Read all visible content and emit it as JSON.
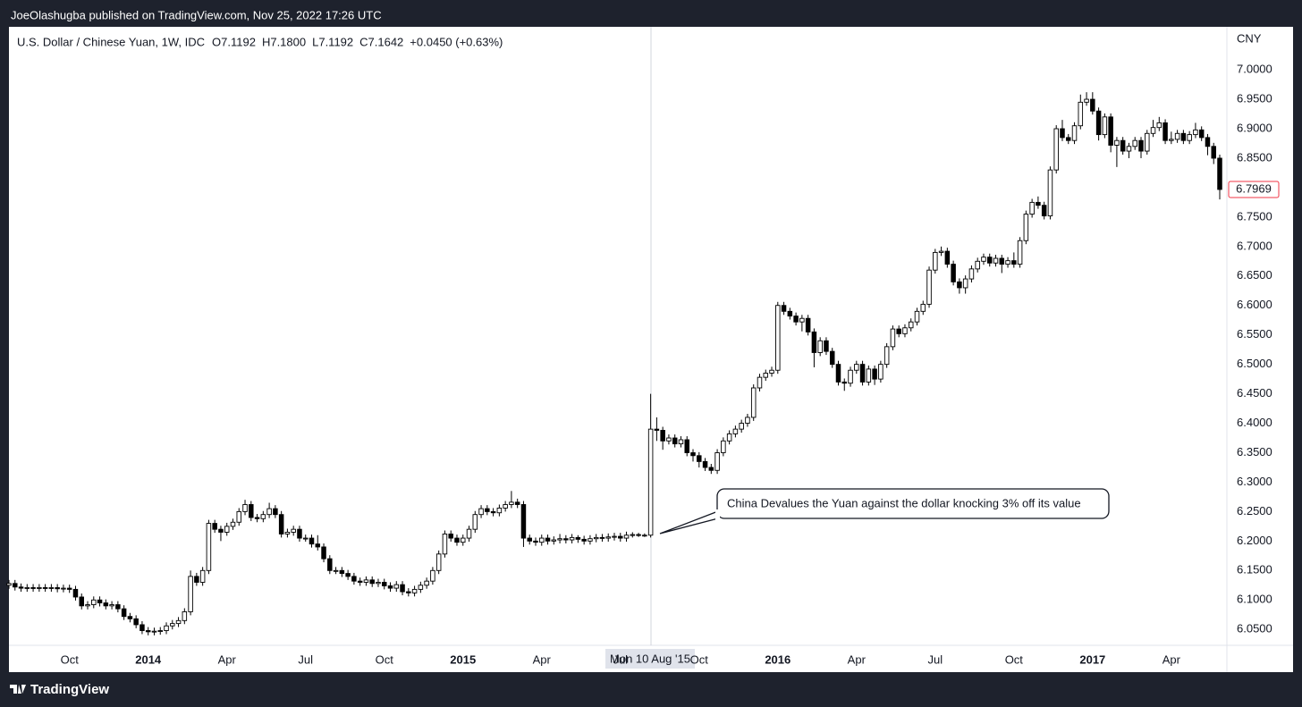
{
  "header": {
    "published": "JoeOlashugba published on TradingView.com, Nov 25, 2022 17:26 UTC"
  },
  "footer": {
    "brand": "TradingView"
  },
  "chart_data": {
    "type": "candlestick",
    "title": "U.S. Dollar / Chinese Yuan, 1W, IDC",
    "ohlc_header": [
      "O7.1192",
      "H7.1800",
      "L7.1192",
      "C7.1642",
      "+0.0450 (+0.63%)"
    ],
    "y_axis_label": "CNY",
    "crosshair_label": "Mon 10 Aug '15",
    "annotation": "China Devalues the Yuan against the dollar knocking 3% off its value",
    "up_color": "#ffffff",
    "down_color": "#000000",
    "outline_color": "#000000",
    "grid": false,
    "ylim": [
      6.023,
      7.073
    ],
    "yticks": [
      {
        "value": 6.05,
        "label": "6.0500"
      },
      {
        "value": 6.1,
        "label": "6.1000"
      },
      {
        "value": 6.15,
        "label": "6.1500"
      },
      {
        "value": 6.2,
        "label": "6.2000"
      },
      {
        "value": 6.25,
        "label": "6.2500"
      },
      {
        "value": 6.3,
        "label": "6.3000"
      },
      {
        "value": 6.35,
        "label": "6.3500"
      },
      {
        "value": 6.4,
        "label": "6.4000"
      },
      {
        "value": 6.45,
        "label": "6.4500"
      },
      {
        "value": 6.5,
        "label": "6.5000"
      },
      {
        "value": 6.55,
        "label": "6.5500"
      },
      {
        "value": 6.6,
        "label": "6.6000"
      },
      {
        "value": 6.65,
        "label": "6.6500"
      },
      {
        "value": 6.7,
        "label": "6.7000"
      },
      {
        "value": 6.75,
        "label": "6.7500"
      },
      {
        "value": 6.8,
        "label": "6.8000"
      },
      {
        "value": 6.85,
        "label": "6.8500"
      },
      {
        "value": 6.9,
        "label": "6.9000"
      },
      {
        "value": 6.95,
        "label": "6.9500"
      },
      {
        "value": 7.0,
        "label": "7.0000"
      }
    ],
    "xticks": [
      {
        "value": 10,
        "label": "Oct"
      },
      {
        "value": 23,
        "label": "2014"
      },
      {
        "value": 36,
        "label": "Apr"
      },
      {
        "value": 49,
        "label": "Jul"
      },
      {
        "value": 62,
        "label": "Oct"
      },
      {
        "value": 75,
        "label": "2015"
      },
      {
        "value": 88,
        "label": "Apr"
      },
      {
        "value": 101,
        "label": "Jul"
      },
      {
        "value": 114,
        "label": "Oct"
      },
      {
        "value": 127,
        "label": "2016"
      },
      {
        "value": 140,
        "label": "Apr"
      },
      {
        "value": 153,
        "label": "Jul"
      },
      {
        "value": 166,
        "label": "Oct"
      },
      {
        "value": 179,
        "label": "2017"
      },
      {
        "value": 192,
        "label": "Apr"
      }
    ],
    "open": [
      6.125,
      6.128,
      6.122,
      6.12,
      6.121,
      6.12,
      6.121,
      6.12,
      6.121,
      6.119,
      6.12,
      6.118,
      6.105,
      6.09,
      6.092,
      6.1,
      6.095,
      6.09,
      6.092,
      6.085,
      6.072,
      6.068,
      6.058,
      6.048,
      6.046,
      6.047,
      6.048,
      6.056,
      6.06,
      6.065,
      6.08,
      6.14,
      6.13,
      6.15,
      6.23,
      6.22,
      6.215,
      6.225,
      6.232,
      6.25,
      6.262,
      6.24,
      6.238,
      6.245,
      6.255,
      6.245,
      6.212,
      6.215,
      6.22,
      6.205,
      6.205,
      6.195,
      6.19,
      6.17,
      6.15,
      6.15,
      6.145,
      6.14,
      6.132,
      6.13,
      6.134,
      6.128,
      6.13,
      6.124,
      6.12,
      6.126,
      6.114,
      6.112,
      6.118,
      6.125,
      6.132,
      6.15,
      6.178,
      6.212,
      6.205,
      6.198,
      6.205,
      6.22,
      6.245,
      6.255,
      6.25,
      6.248,
      6.256,
      6.262,
      6.266,
      6.262,
      6.205,
      6.2,
      6.198,
      6.205,
      6.2,
      6.202,
      6.204,
      6.202,
      6.206,
      6.203,
      6.2,
      6.204,
      6.206,
      6.205,
      6.207,
      6.208,
      6.205,
      6.21,
      6.211,
      6.21,
      6.21,
      6.39,
      6.388,
      6.37,
      6.375,
      6.365,
      6.372,
      6.35,
      6.345,
      6.335,
      6.325,
      6.32,
      6.35,
      6.37,
      6.382,
      6.39,
      6.4,
      6.41,
      6.46,
      6.478,
      6.485,
      6.49,
      6.6,
      6.59,
      6.582,
      6.572,
      6.578,
      6.555,
      6.52,
      6.54,
      6.522,
      6.5,
      6.47,
      6.468,
      6.49,
      6.5,
      6.47,
      6.492,
      6.475,
      6.5,
      6.53,
      6.56,
      6.552,
      6.562,
      6.572,
      6.59,
      6.602,
      6.66,
      6.69,
      6.692,
      6.67,
      6.64,
      6.63,
      6.645,
      6.662,
      6.675,
      6.682,
      6.672,
      6.68,
      6.67,
      6.676,
      6.67,
      6.71,
      6.755,
      6.775,
      6.77,
      6.752,
      6.83,
      6.9,
      6.885,
      6.88,
      6.905,
      6.945,
      6.95,
      6.93,
      6.89,
      6.92,
      6.872,
      6.88,
      6.862,
      6.87,
      6.88,
      6.862,
      6.892,
      6.902,
      6.91,
      6.88,
      6.882,
      6.892,
      6.88,
      6.89,
      6.898,
      6.885,
      6.87,
      6.85
    ],
    "high": [
      6.134,
      6.134,
      6.128,
      6.127,
      6.127,
      6.127,
      6.127,
      6.127,
      6.127,
      6.126,
      6.126,
      6.124,
      6.111,
      6.098,
      6.106,
      6.106,
      6.101,
      6.098,
      6.098,
      6.091,
      6.078,
      6.074,
      6.064,
      6.054,
      6.053,
      6.054,
      6.062,
      6.066,
      6.071,
      6.086,
      6.15,
      6.146,
      6.156,
      6.236,
      6.236,
      6.226,
      6.231,
      6.238,
      6.256,
      6.27,
      6.268,
      6.246,
      6.251,
      6.265,
      6.261,
      6.251,
      6.221,
      6.226,
      6.226,
      6.211,
      6.211,
      6.21,
      6.196,
      6.176,
      6.156,
      6.156,
      6.151,
      6.146,
      6.138,
      6.14,
      6.14,
      6.136,
      6.136,
      6.13,
      6.132,
      6.132,
      6.12,
      6.124,
      6.131,
      6.138,
      6.156,
      6.184,
      6.218,
      6.218,
      6.211,
      6.211,
      6.226,
      6.251,
      6.261,
      6.261,
      6.256,
      6.262,
      6.268,
      6.285,
      6.272,
      6.268,
      6.211,
      6.206,
      6.211,
      6.211,
      6.208,
      6.212,
      6.21,
      6.212,
      6.21,
      6.209,
      6.21,
      6.212,
      6.212,
      6.213,
      6.214,
      6.214,
      6.216,
      6.215,
      6.214,
      6.213,
      6.45,
      6.41,
      6.394,
      6.381,
      6.381,
      6.378,
      6.378,
      6.356,
      6.351,
      6.341,
      6.331,
      6.356,
      6.376,
      6.388,
      6.396,
      6.406,
      6.416,
      6.466,
      6.484,
      6.491,
      6.496,
      6.606,
      6.606,
      6.596,
      6.588,
      6.584,
      6.584,
      6.561,
      6.546,
      6.546,
      6.528,
      6.506,
      6.476,
      6.496,
      6.506,
      6.506,
      6.498,
      6.498,
      6.506,
      6.536,
      6.566,
      6.566,
      6.568,
      6.578,
      6.596,
      6.608,
      6.666,
      6.696,
      6.7,
      6.698,
      6.676,
      6.646,
      6.651,
      6.668,
      6.681,
      6.688,
      6.688,
      6.686,
      6.686,
      6.682,
      6.69,
      6.716,
      6.761,
      6.781,
      6.785,
      6.776,
      6.836,
      6.906,
      6.915,
      6.891,
      6.911,
      6.958,
      6.962,
      6.962,
      6.936,
      6.926,
      6.926,
      6.886,
      6.886,
      6.876,
      6.886,
      6.886,
      6.898,
      6.915,
      6.92,
      6.916,
      6.895,
      6.898,
      6.898,
      6.896,
      6.91,
      6.904,
      6.891,
      6.876,
      6.856
    ],
    "low": [
      6.119,
      6.116,
      6.114,
      6.114,
      6.114,
      6.114,
      6.114,
      6.114,
      6.113,
      6.113,
      6.112,
      6.099,
      6.084,
      6.084,
      6.086,
      6.089,
      6.084,
      6.084,
      6.079,
      6.066,
      6.062,
      6.052,
      6.042,
      6.04,
      6.04,
      6.041,
      6.042,
      6.05,
      6.054,
      6.059,
      6.074,
      6.124,
      6.124,
      6.144,
      6.214,
      6.2,
      6.209,
      6.219,
      6.226,
      6.244,
      6.234,
      6.232,
      6.232,
      6.239,
      6.239,
      6.206,
      6.206,
      6.209,
      6.199,
      6.199,
      6.189,
      6.184,
      6.164,
      6.144,
      6.144,
      6.139,
      6.134,
      6.126,
      6.124,
      6.124,
      6.122,
      6.122,
      6.118,
      6.114,
      6.114,
      6.108,
      6.106,
      6.106,
      6.112,
      6.119,
      6.126,
      6.144,
      6.172,
      6.199,
      6.192,
      6.192,
      6.199,
      6.214,
      6.239,
      6.244,
      6.242,
      6.242,
      6.25,
      6.256,
      6.256,
      6.19,
      6.194,
      6.192,
      6.192,
      6.194,
      6.194,
      6.196,
      6.196,
      6.196,
      6.197,
      6.194,
      6.194,
      6.198,
      6.199,
      6.199,
      6.201,
      6.199,
      6.199,
      6.206,
      6.207,
      6.207,
      6.206,
      6.37,
      6.355,
      6.364,
      6.359,
      6.359,
      6.344,
      6.335,
      6.325,
      6.319,
      6.314,
      6.314,
      6.344,
      6.364,
      6.376,
      6.384,
      6.394,
      6.404,
      6.454,
      6.472,
      6.479,
      6.484,
      6.584,
      6.576,
      6.566,
      6.556,
      6.549,
      6.495,
      6.514,
      6.516,
      6.494,
      6.464,
      6.455,
      6.462,
      6.484,
      6.464,
      6.464,
      6.465,
      6.469,
      6.494,
      6.524,
      6.546,
      6.546,
      6.556,
      6.566,
      6.584,
      6.596,
      6.654,
      6.684,
      6.664,
      6.634,
      6.62,
      6.62,
      6.639,
      6.656,
      6.669,
      6.666,
      6.666,
      6.655,
      6.664,
      6.664,
      6.664,
      6.704,
      6.749,
      6.764,
      6.746,
      6.746,
      6.824,
      6.879,
      6.874,
      6.874,
      6.899,
      6.939,
      6.924,
      6.88,
      6.884,
      6.86,
      6.835,
      6.856,
      6.85,
      6.864,
      6.85,
      6.856,
      6.886,
      6.896,
      6.874,
      6.874,
      6.876,
      6.874,
      6.874,
      6.884,
      6.879,
      6.855,
      6.84,
      6.78
    ],
    "close": [
      6.128,
      6.122,
      6.12,
      6.121,
      6.12,
      6.121,
      6.12,
      6.121,
      6.119,
      6.12,
      6.118,
      6.105,
      6.09,
      6.092,
      6.1,
      6.095,
      6.09,
      6.092,
      6.085,
      6.072,
      6.068,
      6.058,
      6.048,
      6.046,
      6.047,
      6.048,
      6.056,
      6.06,
      6.065,
      6.08,
      6.14,
      6.13,
      6.15,
      6.23,
      6.22,
      6.215,
      6.225,
      6.232,
      6.25,
      6.262,
      6.24,
      6.238,
      6.245,
      6.255,
      6.245,
      6.212,
      6.215,
      6.22,
      6.205,
      6.205,
      6.195,
      6.19,
      6.17,
      6.15,
      6.15,
      6.145,
      6.14,
      6.132,
      6.13,
      6.134,
      6.128,
      6.13,
      6.124,
      6.12,
      6.126,
      6.114,
      6.112,
      6.118,
      6.125,
      6.132,
      6.15,
      6.178,
      6.212,
      6.205,
      6.198,
      6.205,
      6.22,
      6.245,
      6.255,
      6.25,
      6.248,
      6.256,
      6.262,
      6.266,
      6.262,
      6.205,
      6.2,
      6.198,
      6.205,
      6.2,
      6.202,
      6.204,
      6.202,
      6.206,
      6.203,
      6.2,
      6.204,
      6.206,
      6.205,
      6.207,
      6.208,
      6.205,
      6.21,
      6.211,
      6.21,
      6.21,
      6.39,
      6.388,
      6.37,
      6.375,
      6.365,
      6.372,
      6.35,
      6.345,
      6.335,
      6.325,
      6.32,
      6.35,
      6.37,
      6.382,
      6.39,
      6.4,
      6.41,
      6.46,
      6.478,
      6.485,
      6.49,
      6.6,
      6.59,
      6.582,
      6.572,
      6.578,
      6.555,
      6.52,
      6.54,
      6.522,
      6.5,
      6.47,
      6.468,
      6.49,
      6.5,
      6.47,
      6.492,
      6.475,
      6.5,
      6.53,
      6.56,
      6.552,
      6.562,
      6.572,
      6.59,
      6.602,
      6.66,
      6.69,
      6.692,
      6.67,
      6.64,
      6.63,
      6.645,
      6.662,
      6.675,
      6.682,
      6.672,
      6.68,
      6.67,
      6.676,
      6.67,
      6.71,
      6.755,
      6.775,
      6.77,
      6.752,
      6.83,
      6.9,
      6.885,
      6.88,
      6.905,
      6.945,
      6.95,
      6.93,
      6.89,
      6.92,
      6.872,
      6.88,
      6.862,
      6.87,
      6.88,
      6.862,
      6.892,
      6.902,
      6.91,
      6.88,
      6.882,
      6.892,
      6.88,
      6.89,
      6.898,
      6.885,
      6.87,
      6.85,
      6.7969
    ]
  }
}
